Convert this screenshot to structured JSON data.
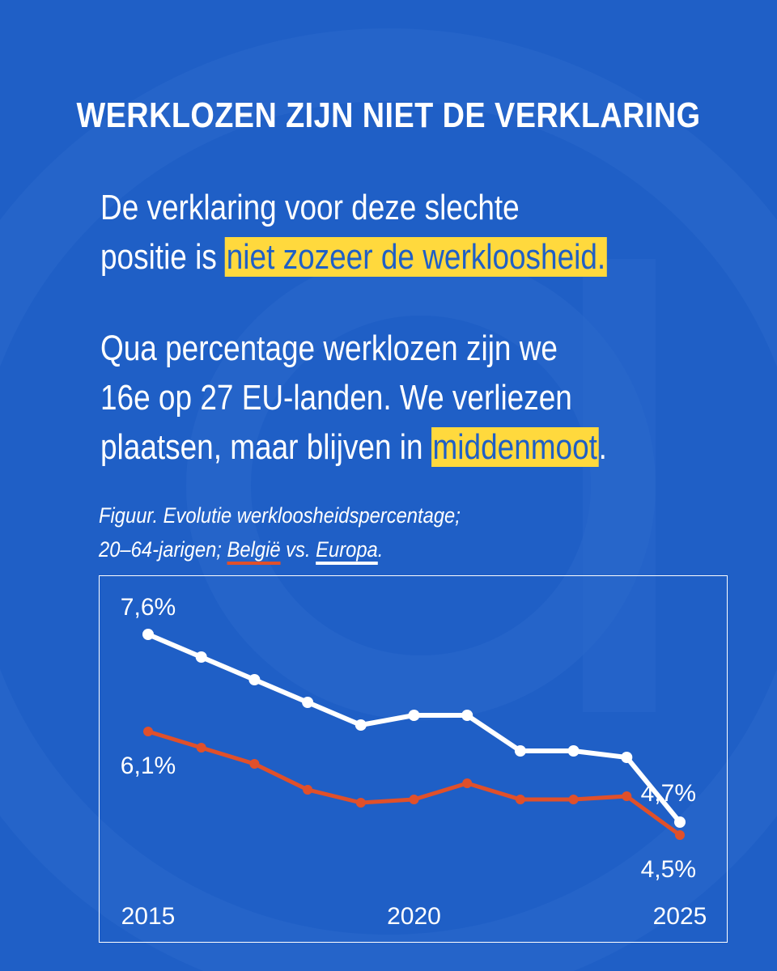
{
  "title": "WERKLOZEN ZIJN NIET DE VERKLARING",
  "paragraph1": {
    "line1": "De verklaring voor deze slechte",
    "line2_pre": "positie is ",
    "line2_highlight": "niet zozeer de werkloosheid."
  },
  "paragraph2": {
    "line1": "Qua percentage werklozen zijn we",
    "line2": "16e op 27 EU-landen. We verliezen",
    "line3_pre": "plaatsen, maar blijven in ",
    "line3_highlight": "middenmoot",
    "line3_post": "."
  },
  "caption": {
    "line1": "Figuur. Evolutie werkloosheidspercentage;",
    "line2_pre": "20–64-jarigen; ",
    "belgie": "België",
    "vs": " vs. ",
    "europa": "Europa",
    "end": "."
  },
  "colors": {
    "background": "#1f5fc6",
    "highlight": "#ffd93d",
    "belgie": "#e0502a",
    "europa": "#ffffff"
  },
  "chart_data": {
    "type": "line",
    "x": [
      2015,
      2016,
      2017,
      2018,
      2019,
      2020,
      2021,
      2022,
      2023,
      2024,
      2025
    ],
    "tick_labels": [
      "2015",
      "2020",
      "2025"
    ],
    "ylim": [
      4.0,
      8.0
    ],
    "series": [
      {
        "name": "Europa",
        "color": "#ffffff",
        "values": [
          7.6,
          7.25,
          6.9,
          6.55,
          6.2,
          6.35,
          6.35,
          5.8,
          5.8,
          5.7,
          4.7
        ]
      },
      {
        "name": "België",
        "color": "#e0502a",
        "values": [
          6.1,
          5.85,
          5.6,
          5.2,
          5.0,
          5.05,
          5.3,
          5.05,
          5.05,
          5.1,
          4.5
        ]
      }
    ],
    "annotations": {
      "europa_start": "7,6%",
      "europa_end": "4,7%",
      "belgie_start": "6,1%",
      "belgie_end": "4,5%"
    }
  }
}
